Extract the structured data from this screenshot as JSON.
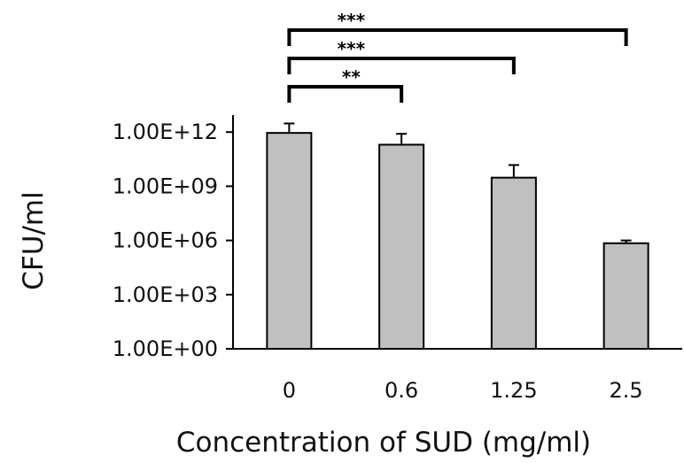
{
  "chart_data": {
    "type": "bar",
    "title": "",
    "xlabel": "Concentration of SUD (mg/ml)",
    "ylabel": "CFU/ml",
    "y_scale": "log",
    "ylim": [
      1,
      10000000000000.0
    ],
    "yticks": [
      {
        "value": 1,
        "label": "1.00E+00"
      },
      {
        "value": 1000,
        "label": "1.00E+03"
      },
      {
        "value": 1000000,
        "label": "1.00E+06"
      },
      {
        "value": 1000000000,
        "label": "1.00E+09"
      },
      {
        "value": 1000000000000,
        "label": "1.00E+12"
      }
    ],
    "categories": [
      "0",
      "0.6",
      "1.25",
      "2.5"
    ],
    "values": [
      900000000000.0,
      200000000000.0,
      3000000000.0,
      700000.0
    ],
    "error_upper": [
      3000000000000.0,
      800000000000.0,
      15000000000.0,
      1000000.0
    ],
    "significance": [
      {
        "from": "0",
        "to": "0.6",
        "label": "**"
      },
      {
        "from": "0",
        "to": "1.25",
        "label": "***"
      },
      {
        "from": "0",
        "to": "2.5",
        "label": "***"
      }
    ],
    "grid": false,
    "legend": "none",
    "bar_color": "#c0c0c0",
    "axis_color": "#000000"
  }
}
